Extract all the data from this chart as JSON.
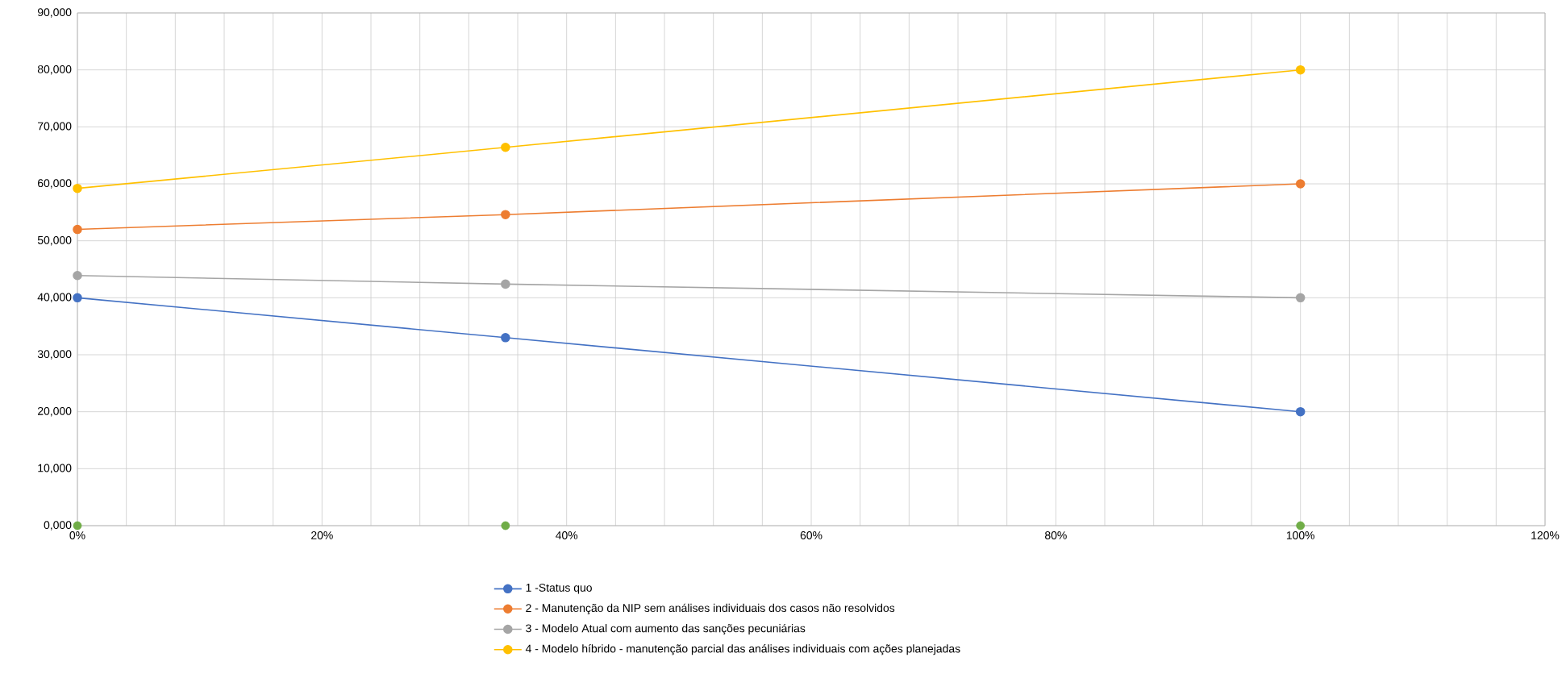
{
  "chart_data": {
    "type": "line",
    "x": [
      0,
      0.35,
      1.0
    ],
    "series": [
      {
        "name": "1 -Status quo",
        "color": "#4472c4",
        "values": [
          40000,
          33000,
          20000
        ]
      },
      {
        "name": "2 - Manutenção da NIP sem análises individuais dos casos não resolvidos",
        "color": "#ed7d31",
        "values": [
          52000,
          54600,
          60000
        ]
      },
      {
        "name": "3 - Modelo Atual com aumento das sanções pecuniárias",
        "color": "#a5a5a5",
        "values": [
          43900,
          42400,
          40000
        ]
      },
      {
        "name": "4 - Modelo híbrido - manutenção parcial das análises individuais com ações planejadas",
        "color": "#ffc000",
        "values": [
          59200,
          66400,
          80000
        ]
      },
      {
        "type": "scatter",
        "color": "#70ad47",
        "values": [
          0,
          0,
          0
        ]
      }
    ],
    "xlim": [
      0,
      1.2
    ],
    "xticks": [
      {
        "value": 0,
        "label": "0%"
      },
      {
        "value": 0.04,
        "label": null
      },
      {
        "value": 0.08,
        "label": null
      },
      {
        "value": 0.12,
        "label": null
      },
      {
        "value": 0.16,
        "label": null
      },
      {
        "value": 0.2,
        "label": "20%"
      },
      {
        "value": 0.24,
        "label": null
      },
      {
        "value": 0.28,
        "label": null
      },
      {
        "value": 0.32,
        "label": null
      },
      {
        "value": 0.36,
        "label": null
      },
      {
        "value": 0.4,
        "label": "40%"
      },
      {
        "value": 0.44,
        "label": null
      },
      {
        "value": 0.48,
        "label": null
      },
      {
        "value": 0.52,
        "label": null
      },
      {
        "value": 0.56,
        "label": null
      },
      {
        "value": 0.6,
        "label": "60%"
      },
      {
        "value": 0.64,
        "label": null
      },
      {
        "value": 0.68,
        "label": null
      },
      {
        "value": 0.72,
        "label": null
      },
      {
        "value": 0.76,
        "label": null
      },
      {
        "value": 0.8,
        "label": "80%"
      },
      {
        "value": 0.84,
        "label": null
      },
      {
        "value": 0.88,
        "label": null
      },
      {
        "value": 0.92,
        "label": null
      },
      {
        "value": 0.96,
        "label": null
      },
      {
        "value": 1.0,
        "label": "100%"
      },
      {
        "value": 1.04,
        "label": null
      },
      {
        "value": 1.08,
        "label": null
      },
      {
        "value": 1.12,
        "label": null
      },
      {
        "value": 1.16,
        "label": null
      },
      {
        "value": 1.2,
        "label": "120%"
      }
    ],
    "ylim": [
      0,
      90000
    ],
    "yticks": [
      {
        "value": 0,
        "label": "0,000"
      },
      {
        "value": 10000,
        "label": "10,000"
      },
      {
        "value": 20000,
        "label": "20,000"
      },
      {
        "value": 30000,
        "label": "30,000"
      },
      {
        "value": 40000,
        "label": "40,000"
      },
      {
        "value": 50000,
        "label": "50,000"
      },
      {
        "value": 60000,
        "label": "60,000"
      },
      {
        "value": 70000,
        "label": "70,000"
      },
      {
        "value": 80000,
        "label": "80,000"
      },
      {
        "value": 90000,
        "label": "90,000"
      }
    ],
    "grid": true,
    "legend": "bottom",
    "marker": "circle",
    "line_style": "solid"
  }
}
